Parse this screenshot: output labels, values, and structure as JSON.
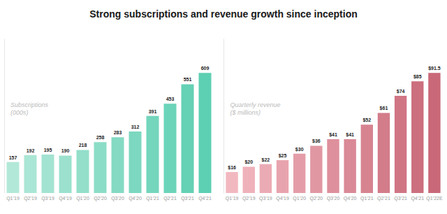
{
  "chart_data": [
    {
      "type": "bar",
      "title": "Strong subscriptions and revenue growth since inception",
      "annotation": "Subscriptions\n(000s)",
      "categories": [
        "Q1’19",
        "Q2’19",
        "Q3’19",
        "Q4’19",
        "Q1’20",
        "Q2’20",
        "Q3’20",
        "Q4’20",
        "Q1’21",
        "Q2’21",
        "Q3’21",
        "Q4’21"
      ],
      "values": [
        157,
        192,
        195,
        190,
        218,
        258,
        283,
        312,
        391,
        453,
        551,
        609
      ],
      "colors": [
        "#b2e8d8",
        "#aae6d5",
        "#a3e3d1",
        "#9be1ce",
        "#93dfca",
        "#8bddc7",
        "#84dac3",
        "#7cd8c0",
        "#74d6bc",
        "#6cd4b9",
        "#65d1b5",
        "#5dcfb2"
      ],
      "ylim": [
        0,
        779.52
      ],
      "tick_labels": "x",
      "grid": false,
      "data_labels": true
    },
    {
      "type": "bar",
      "annotation": "Quarterly revenue\n($ millions)",
      "categories": [
        "Q1’19",
        "Q2’19",
        "Q3’19",
        "Q4’19",
        "Q1’20",
        "Q2’20",
        "Q3’20",
        "Q4’20",
        "Q1’21",
        "Q2’21",
        "Q3’21",
        "Q4’21",
        "Q1’22E"
      ],
      "values": [
        16,
        20,
        22,
        25,
        30,
        36,
        41,
        41,
        52,
        61,
        74,
        85,
        91.5
      ],
      "value_labels": [
        "$16",
        "$20",
        "$22",
        "$25",
        "$30",
        "$36",
        "$41",
        "$41",
        "$52",
        "$61",
        "$74",
        "$85",
        "$91.5"
      ],
      "colors": [
        "#f2b8c0",
        "#efb1ba",
        "#ebabb4",
        "#e8a4ae",
        "#e49da8",
        "#e197a2",
        "#de909c",
        "#da8996",
        "#d78390",
        "#d37c8a",
        "#d07584",
        "#cc6f7e",
        "#c96878"
      ],
      "ylim": [
        0,
        117.12
      ],
      "tick_labels": "x",
      "grid": false,
      "data_labels": true
    }
  ]
}
